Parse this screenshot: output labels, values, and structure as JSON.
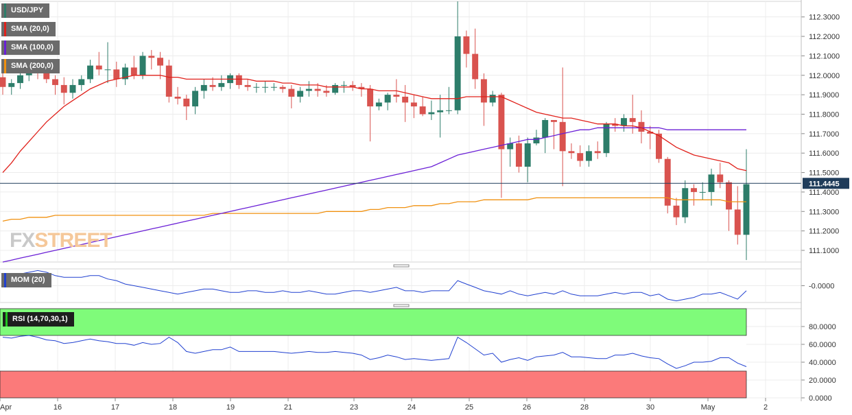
{
  "legends": {
    "symbol": "USD/JPY",
    "sma20": "SMA (20,0)",
    "sma100": "SMA (100,0)",
    "sma200": "SMA (200,0)",
    "mom": "MOM (20)",
    "rsi": "RSI (14,70,30,1)"
  },
  "watermark": {
    "fx": "FX",
    "street": "STREET"
  },
  "colors": {
    "bull": "#2d7d6a",
    "bear": "#d9534f",
    "sma20": "#e0201a",
    "sma100": "#6a1fd6",
    "sma200": "#f0900f",
    "mom": "#2040d0",
    "rsi": "#2040d0",
    "overbought": "#7ffb7a",
    "oversold": "#fb7a7a",
    "price_tag": "#1f3c5a"
  },
  "chart_data": [
    {
      "type": "candlestick",
      "name": "USD/JPY",
      "current_price": "111.4445",
      "ylim": [
        111.04,
        112.38
      ],
      "y_ticks": [
        "112.3000",
        "112.2000",
        "112.1000",
        "112.0000",
        "111.9000",
        "111.8000",
        "111.7000",
        "111.6000",
        "111.5000",
        "111.4000",
        "111.3000",
        "111.2000",
        "111.1000"
      ],
      "x_ticks": [
        "Apr",
        "16",
        "17",
        "18",
        "19",
        "21",
        "23",
        "24",
        "25",
        "26",
        "28",
        "30",
        "May",
        "2"
      ],
      "candles": [
        [
          111.99,
          112.05,
          111.9,
          111.94
        ],
        [
          111.94,
          111.98,
          111.9,
          111.96
        ],
        [
          111.96,
          112.03,
          111.93,
          112.0
        ],
        [
          112.0,
          112.06,
          111.97,
          112.04
        ],
        [
          112.04,
          112.07,
          111.98,
          112.01
        ],
        [
          112.01,
          112.04,
          111.96,
          111.98
        ],
        [
          111.98,
          112.0,
          111.9,
          111.95
        ],
        [
          111.95,
          111.99,
          111.85,
          111.91
        ],
        [
          111.91,
          111.98,
          111.88,
          111.95
        ],
        [
          111.95,
          112.0,
          111.92,
          111.98
        ],
        [
          111.98,
          112.08,
          111.96,
          112.05
        ],
        [
          112.05,
          112.12,
          112.0,
          112.03
        ],
        [
          112.03,
          112.17,
          111.96,
          112.03
        ],
        [
          112.03,
          112.07,
          111.94,
          111.98
        ],
        [
          111.98,
          112.06,
          111.95,
          112.04
        ],
        [
          112.04,
          112.1,
          111.98,
          112.0
        ],
        [
          112.0,
          112.12,
          111.98,
          112.1
        ],
        [
          112.1,
          112.13,
          112.03,
          112.09
        ],
        [
          112.09,
          112.12,
          111.98,
          112.05
        ],
        [
          112.05,
          112.08,
          111.86,
          111.89
        ],
        [
          111.89,
          111.94,
          111.85,
          111.88
        ],
        [
          111.88,
          111.9,
          111.77,
          111.84
        ],
        [
          111.84,
          111.94,
          111.8,
          111.92
        ],
        [
          111.92,
          111.98,
          111.88,
          111.95
        ],
        [
          111.95,
          111.99,
          111.92,
          111.94
        ],
        [
          111.94,
          112.0,
          111.92,
          111.96
        ],
        [
          111.96,
          112.01,
          111.93,
          112.0
        ],
        [
          112.0,
          112.01,
          111.93,
          111.95
        ],
        [
          111.95,
          111.98,
          111.92,
          111.94
        ],
        [
          111.94,
          111.96,
          111.91,
          111.94
        ],
        [
          111.94,
          111.97,
          111.91,
          111.94
        ],
        [
          111.94,
          111.96,
          111.92,
          111.94
        ],
        [
          111.94,
          111.95,
          111.91,
          111.93
        ],
        [
          111.93,
          111.95,
          111.83,
          111.89
        ],
        [
          111.89,
          111.94,
          111.86,
          111.92
        ],
        [
          111.92,
          111.97,
          111.89,
          111.93
        ],
        [
          111.93,
          111.96,
          111.89,
          111.92
        ],
        [
          111.92,
          111.95,
          111.89,
          111.91
        ],
        [
          111.91,
          111.96,
          111.9,
          111.95
        ],
        [
          111.95,
          111.97,
          111.91,
          111.95
        ],
        [
          111.95,
          111.97,
          111.92,
          111.94
        ],
        [
          111.94,
          111.96,
          111.89,
          111.93
        ],
        [
          111.93,
          111.95,
          111.66,
          111.84
        ],
        [
          111.84,
          111.88,
          111.82,
          111.86
        ],
        [
          111.86,
          111.91,
          111.82,
          111.9
        ],
        [
          111.9,
          111.98,
          111.86,
          111.89
        ],
        [
          111.89,
          111.95,
          111.76,
          111.86
        ],
        [
          111.86,
          111.9,
          111.78,
          111.84
        ],
        [
          111.84,
          111.89,
          111.79,
          111.8
        ],
        [
          111.8,
          111.87,
          111.77,
          111.81
        ],
        [
          111.81,
          111.9,
          111.68,
          111.82
        ],
        [
          111.82,
          111.94,
          111.8,
          111.82
        ],
        [
          111.82,
          112.38,
          111.8,
          112.2
        ],
        [
          112.2,
          112.23,
          112.04,
          112.11
        ],
        [
          112.11,
          112.24,
          111.93,
          111.98
        ],
        [
          111.98,
          112.01,
          111.74,
          111.86
        ],
        [
          111.86,
          111.92,
          111.84,
          111.9
        ],
        [
          111.9,
          111.91,
          111.37,
          111.62
        ],
        [
          111.62,
          111.68,
          111.53,
          111.65
        ],
        [
          111.65,
          111.69,
          111.5,
          111.53
        ],
        [
          111.53,
          111.68,
          111.45,
          111.65
        ],
        [
          111.65,
          111.72,
          111.64,
          111.68
        ],
        [
          111.68,
          111.78,
          111.6,
          111.77
        ],
        [
          111.77,
          111.76,
          111.62,
          111.76
        ],
        [
          111.76,
          112.04,
          111.43,
          111.61
        ],
        [
          111.61,
          111.65,
          111.57,
          111.6
        ],
        [
          111.6,
          111.64,
          111.53,
          111.56
        ],
        [
          111.56,
          111.64,
          111.53,
          111.61
        ],
        [
          111.61,
          111.66,
          111.57,
          111.6
        ],
        [
          111.6,
          111.76,
          111.58,
          111.75
        ],
        [
          111.75,
          111.78,
          111.71,
          111.74
        ],
        [
          111.74,
          111.8,
          111.71,
          111.78
        ],
        [
          111.78,
          111.9,
          111.7,
          111.76
        ],
        [
          111.76,
          111.82,
          111.65,
          111.71
        ],
        [
          111.71,
          111.74,
          111.62,
          111.7
        ],
        [
          111.7,
          111.72,
          111.55,
          111.57
        ],
        [
          111.57,
          111.58,
          111.29,
          111.33
        ],
        [
          111.33,
          111.37,
          111.23,
          111.27
        ],
        [
          111.27,
          111.46,
          111.24,
          111.42
        ],
        [
          111.42,
          111.44,
          111.33,
          111.4
        ],
        [
          111.4,
          111.45,
          111.36,
          111.4
        ],
        [
          111.4,
          111.52,
          111.33,
          111.49
        ],
        [
          111.49,
          111.55,
          111.42,
          111.45
        ],
        [
          111.45,
          111.46,
          111.2,
          111.31
        ],
        [
          111.31,
          111.43,
          111.13,
          111.18
        ],
        [
          111.18,
          111.62,
          111.05,
          111.44
        ]
      ],
      "sma20": [
        111.5,
        111.55,
        111.61,
        111.66,
        111.71,
        111.76,
        111.8,
        111.84,
        111.87,
        111.9,
        111.93,
        111.95,
        111.97,
        111.98,
        111.99,
        112.0,
        112.0,
        112.0,
        112.0,
        111.99,
        111.99,
        111.98,
        111.98,
        111.98,
        111.98,
        111.98,
        111.98,
        111.98,
        111.98,
        111.97,
        111.97,
        111.97,
        111.96,
        111.96,
        111.95,
        111.95,
        111.95,
        111.94,
        111.94,
        111.94,
        111.94,
        111.93,
        111.93,
        111.92,
        111.92,
        111.92,
        111.91,
        111.9,
        111.89,
        111.88,
        111.88,
        111.88,
        111.88,
        111.89,
        111.89,
        111.89,
        111.89,
        111.89,
        111.87,
        111.85,
        111.83,
        111.81,
        111.8,
        111.79,
        111.78,
        111.78,
        111.77,
        111.76,
        111.75,
        111.75,
        111.75,
        111.74,
        111.74,
        111.73,
        111.71,
        111.69,
        111.66,
        111.63,
        111.61,
        111.59,
        111.58,
        111.57,
        111.56,
        111.55,
        111.52,
        111.51
      ],
      "sma100": [
        111.04,
        111.05,
        111.06,
        111.07,
        111.08,
        111.09,
        111.1,
        111.11,
        111.12,
        111.13,
        111.14,
        111.15,
        111.16,
        111.17,
        111.18,
        111.19,
        111.2,
        111.21,
        111.22,
        111.23,
        111.24,
        111.25,
        111.26,
        111.27,
        111.28,
        111.29,
        111.3,
        111.31,
        111.32,
        111.33,
        111.34,
        111.35,
        111.36,
        111.37,
        111.38,
        111.39,
        111.4,
        111.41,
        111.42,
        111.43,
        111.44,
        111.45,
        111.46,
        111.47,
        111.48,
        111.49,
        111.5,
        111.51,
        111.52,
        111.53,
        111.55,
        111.57,
        111.59,
        111.6,
        111.61,
        111.62,
        111.63,
        111.64,
        111.65,
        111.66,
        111.67,
        111.67,
        111.68,
        111.69,
        111.7,
        111.71,
        111.72,
        111.72,
        111.73,
        111.73,
        111.73,
        111.73,
        111.73,
        111.73,
        111.73,
        111.73,
        111.72,
        111.72,
        111.72,
        111.72,
        111.72,
        111.72,
        111.72,
        111.72,
        111.72,
        111.72
      ],
      "sma200": [
        111.25,
        111.26,
        111.26,
        111.27,
        111.27,
        111.27,
        111.28,
        111.28,
        111.28,
        111.28,
        111.28,
        111.28,
        111.28,
        111.28,
        111.28,
        111.28,
        111.28,
        111.28,
        111.28,
        111.28,
        111.28,
        111.28,
        111.28,
        111.28,
        111.29,
        111.29,
        111.29,
        111.29,
        111.29,
        111.29,
        111.29,
        111.29,
        111.29,
        111.29,
        111.29,
        111.29,
        111.29,
        111.3,
        111.3,
        111.3,
        111.3,
        111.3,
        111.31,
        111.31,
        111.32,
        111.32,
        111.32,
        111.33,
        111.33,
        111.33,
        111.34,
        111.34,
        111.35,
        111.35,
        111.35,
        111.36,
        111.36,
        111.36,
        111.36,
        111.36,
        111.36,
        111.37,
        111.37,
        111.37,
        111.37,
        111.37,
        111.37,
        111.37,
        111.37,
        111.37,
        111.37,
        111.37,
        111.37,
        111.37,
        111.37,
        111.37,
        111.37,
        111.36,
        111.36,
        111.36,
        111.36,
        111.36,
        111.36,
        111.35,
        111.35,
        111.35
      ]
    },
    {
      "type": "line",
      "name": "MOM (20)",
      "y_ticks": [
        "-0.0000"
      ],
      "ylim": [
        -0.1,
        0.1
      ],
      "values": [
        0.06,
        0.06,
        0.07,
        0.08,
        0.09,
        0.08,
        0.06,
        0.05,
        0.05,
        0.05,
        0.06,
        0.06,
        0.04,
        0.03,
        0.01,
        0.0,
        -0.01,
        -0.02,
        -0.03,
        -0.04,
        -0.05,
        -0.04,
        -0.03,
        -0.02,
        -0.02,
        -0.03,
        -0.04,
        -0.04,
        -0.03,
        -0.03,
        -0.04,
        -0.04,
        -0.03,
        -0.04,
        -0.04,
        -0.03,
        -0.04,
        -0.05,
        -0.05,
        -0.04,
        -0.03,
        -0.03,
        -0.04,
        -0.03,
        -0.02,
        -0.01,
        -0.03,
        -0.03,
        -0.04,
        -0.03,
        -0.03,
        -0.03,
        0.03,
        0.01,
        -0.01,
        -0.03,
        -0.04,
        -0.05,
        -0.03,
        -0.05,
        -0.06,
        -0.05,
        -0.04,
        -0.05,
        -0.03,
        -0.05,
        -0.06,
        -0.06,
        -0.06,
        -0.05,
        -0.04,
        -0.05,
        -0.04,
        -0.04,
        -0.06,
        -0.05,
        -0.08,
        -0.09,
        -0.08,
        -0.07,
        -0.05,
        -0.05,
        -0.04,
        -0.06,
        -0.08,
        -0.03
      ]
    },
    {
      "type": "line",
      "name": "RSI (14,70,30,1)",
      "y_ticks": [
        "80.0000",
        "60.0000",
        "40.0000",
        "20.0000",
        "0.0000"
      ],
      "ylim": [
        0,
        100
      ],
      "overbought": 70,
      "oversold": 30,
      "values": [
        68,
        67,
        69,
        70,
        68,
        65,
        64,
        61,
        62,
        64,
        66,
        64,
        63,
        61,
        61,
        59,
        62,
        60,
        61,
        68,
        62,
        52,
        50,
        52,
        54,
        54,
        57,
        52,
        52,
        52,
        52,
        52,
        51,
        50,
        51,
        52,
        51,
        51,
        52,
        51,
        50,
        48,
        43,
        45,
        48,
        46,
        43,
        44,
        43,
        42,
        43,
        44,
        68,
        62,
        55,
        48,
        50,
        40,
        43,
        45,
        42,
        46,
        47,
        48,
        51,
        46,
        46,
        45,
        44,
        44,
        48,
        48,
        50,
        47,
        45,
        44,
        38,
        33,
        36,
        40,
        40,
        41,
        45,
        45,
        39,
        35
      ]
    }
  ]
}
